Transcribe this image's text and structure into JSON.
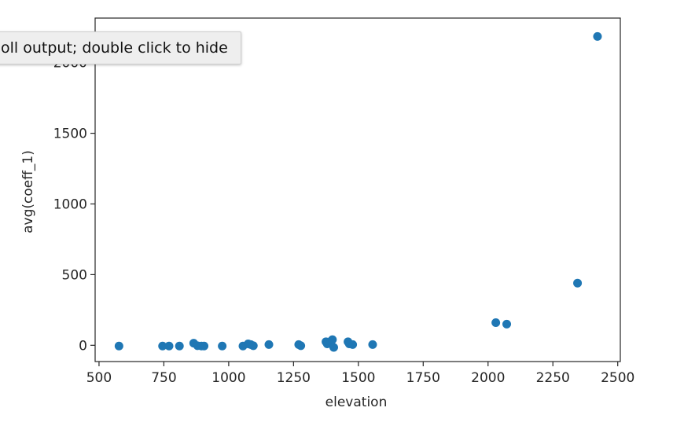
{
  "tooltip": {
    "text": "oll output; double click to hide"
  },
  "colors": {
    "marker": "#1f77b4",
    "axis": "#262626"
  },
  "chart_data": {
    "type": "scatter",
    "title": "",
    "xlabel": "elevation",
    "ylabel": "avg(coeff_1)",
    "xlim": [
      485,
      2510
    ],
    "ylim": [
      -115,
      2315
    ],
    "xticks": [
      500,
      750,
      1000,
      1250,
      1500,
      1750,
      2000,
      2250,
      2500
    ],
    "yticks": [
      0,
      500,
      1000,
      1500,
      2000
    ],
    "grid": false,
    "legend": "none",
    "points": [
      {
        "x": 577,
        "y": -5
      },
      {
        "x": 745,
        "y": -5
      },
      {
        "x": 770,
        "y": -5
      },
      {
        "x": 810,
        "y": -5
      },
      {
        "x": 865,
        "y": 15
      },
      {
        "x": 880,
        "y": -3
      },
      {
        "x": 895,
        "y": -5
      },
      {
        "x": 905,
        "y": -5
      },
      {
        "x": 975,
        "y": -5
      },
      {
        "x": 1055,
        "y": -5
      },
      {
        "x": 1075,
        "y": 10
      },
      {
        "x": 1085,
        "y": 5
      },
      {
        "x": 1095,
        "y": -3
      },
      {
        "x": 1155,
        "y": 5
      },
      {
        "x": 1270,
        "y": 5
      },
      {
        "x": 1278,
        "y": -3
      },
      {
        "x": 1375,
        "y": 25
      },
      {
        "x": 1380,
        "y": 10
      },
      {
        "x": 1395,
        "y": 30
      },
      {
        "x": 1400,
        "y": 40
      },
      {
        "x": 1405,
        "y": -15
      },
      {
        "x": 1460,
        "y": 25
      },
      {
        "x": 1465,
        "y": 10
      },
      {
        "x": 1478,
        "y": 5
      },
      {
        "x": 1555,
        "y": 5
      },
      {
        "x": 2030,
        "y": 160
      },
      {
        "x": 2072,
        "y": 150
      },
      {
        "x": 2345,
        "y": 440
      },
      {
        "x": 2422,
        "y": 2185
      }
    ]
  }
}
